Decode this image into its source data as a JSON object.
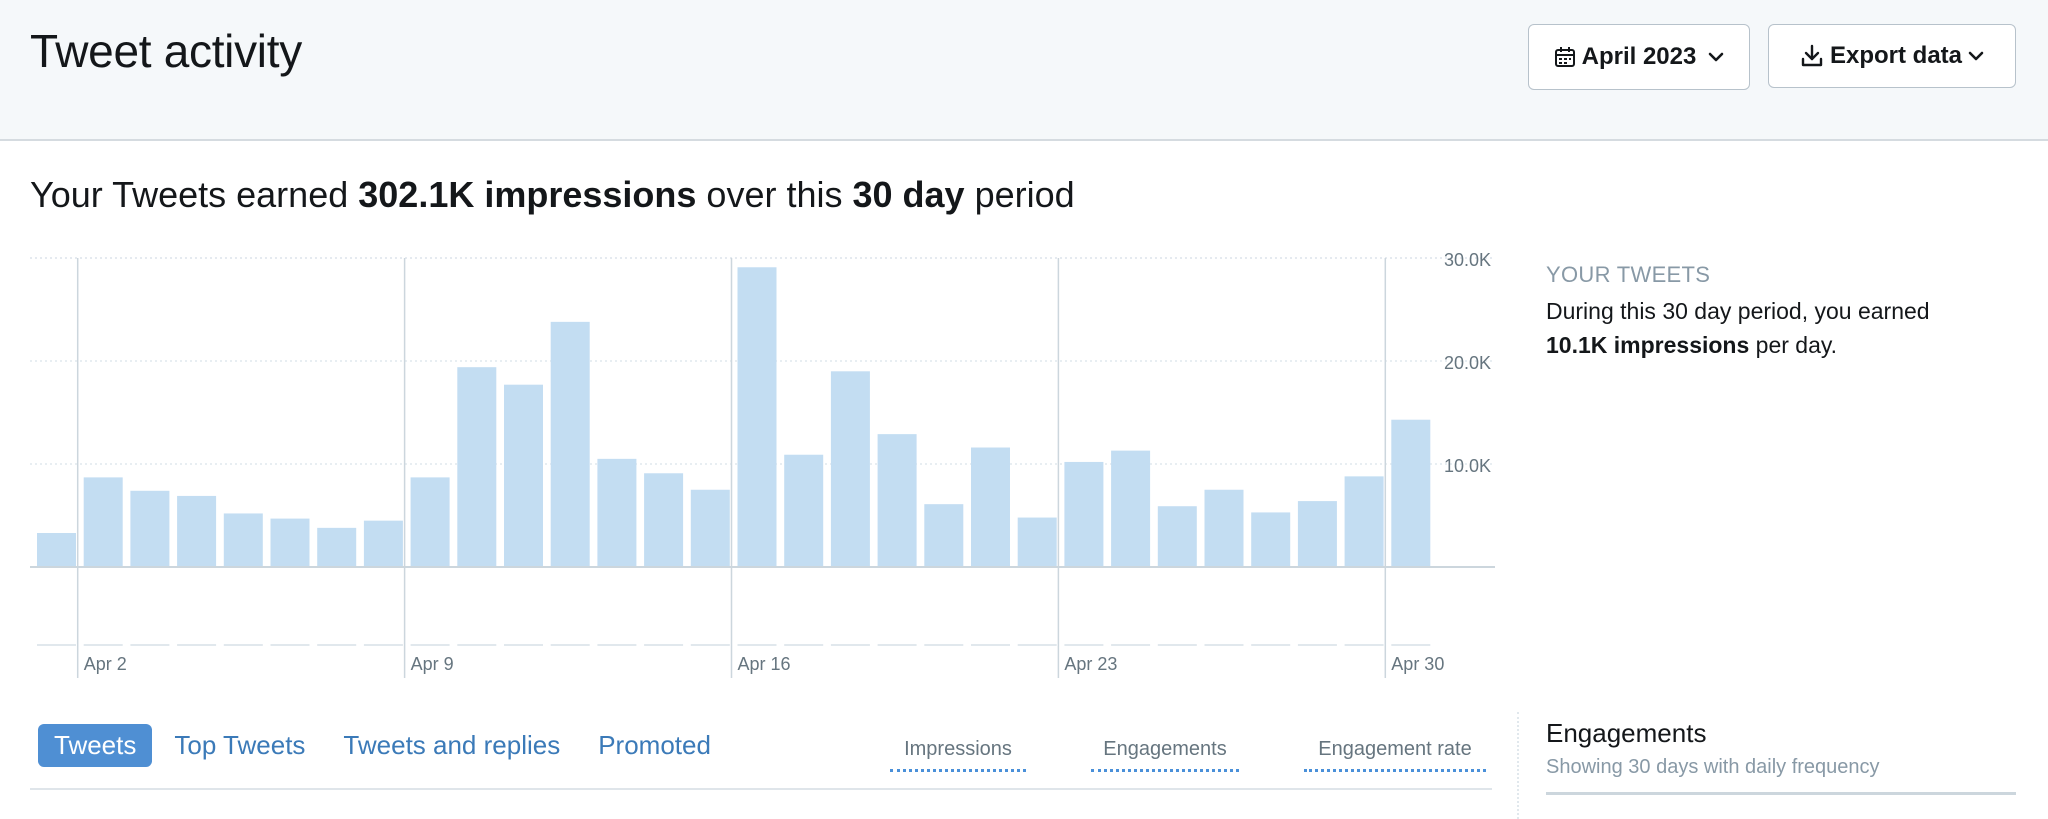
{
  "header": {
    "title": "Tweet activity",
    "date_button": {
      "label": "April 2023",
      "icon": "calendar-icon",
      "caret": "chevron-down-icon"
    },
    "export_button": {
      "label": "Export data",
      "icon": "download-icon",
      "caret": "chevron-down-icon"
    }
  },
  "summary": {
    "prefix": "Your Tweets earned ",
    "impressions": "302.1K impressions",
    "middle": " over this ",
    "period": "30 day",
    "suffix": " period"
  },
  "side": {
    "label": "YOUR TWEETS",
    "line1": "During this 30 day period, you earned",
    "value": "10.1K impressions",
    "line2_suffix": " per day."
  },
  "tabs": [
    {
      "label": "Tweets",
      "active": true
    },
    {
      "label": "Top Tweets",
      "active": false
    },
    {
      "label": "Tweets and replies",
      "active": false
    },
    {
      "label": "Promoted",
      "active": false
    }
  ],
  "metrics": [
    "Impressions",
    "Engagements",
    "Engagement rate"
  ],
  "engagements": {
    "title": "Engagements",
    "subtitle": "Showing 30 days with daily frequency"
  },
  "colors": {
    "bar": "#c3ddf2",
    "accent": "#4f8fd3",
    "link": "#3b7ab8",
    "gridline": "#e1e8ed",
    "header_bg": "#f5f8fa"
  },
  "chart_data": {
    "type": "bar",
    "categories": [
      "Apr 1",
      "Apr 2",
      "Apr 3",
      "Apr 4",
      "Apr 5",
      "Apr 6",
      "Apr 7",
      "Apr 8",
      "Apr 9",
      "Apr 10",
      "Apr 11",
      "Apr 12",
      "Apr 13",
      "Apr 14",
      "Apr 15",
      "Apr 16",
      "Apr 17",
      "Apr 18",
      "Apr 19",
      "Apr 20",
      "Apr 21",
      "Apr 22",
      "Apr 23",
      "Apr 24",
      "Apr 25",
      "Apr 26",
      "Apr 27",
      "Apr 28",
      "Apr 29",
      "Apr 30"
    ],
    "values": [
      3300,
      8700,
      7400,
      6900,
      5200,
      4700,
      3800,
      4500,
      8700,
      19400,
      17700,
      23800,
      10500,
      9100,
      7500,
      29100,
      10900,
      19000,
      12900,
      6100,
      11600,
      4800,
      10200,
      11300,
      5900,
      7500,
      5300,
      6400,
      8800,
      14300
    ],
    "x_tick_labels": [
      "Apr 2",
      "Apr 9",
      "Apr 16",
      "Apr 23",
      "Apr 30"
    ],
    "x_tick_indices": [
      1,
      8,
      15,
      22,
      29
    ],
    "y_ticks": [
      10000,
      20000,
      30000
    ],
    "y_tick_labels": [
      "10.0K",
      "20.0K",
      "30.0K"
    ],
    "ylim": [
      0,
      30000
    ],
    "grid": true,
    "y_axis_position": "right"
  }
}
